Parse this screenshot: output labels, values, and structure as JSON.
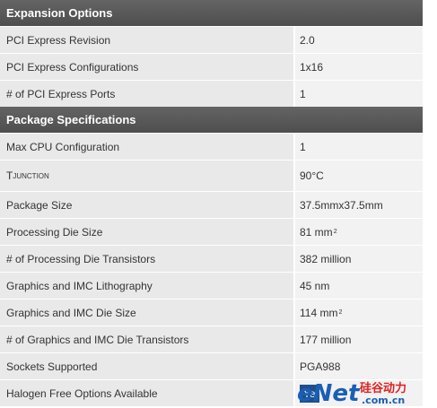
{
  "sections": [
    {
      "title": "Expansion Options",
      "rows": [
        {
          "label": "PCI Express Revision",
          "value": "2.0"
        },
        {
          "label": "PCI Express Configurations",
          "value": "1x16"
        },
        {
          "label": "# of PCI Express Ports",
          "value": "1"
        }
      ]
    },
    {
      "title": "Package Specifications",
      "rows": [
        {
          "label": "Max CPU Configuration",
          "value": "1"
        },
        {
          "label_main": "T",
          "label_sub": "JUNCTION",
          "value": "90°C"
        },
        {
          "label": "Package Size",
          "value": "37.5mmx37.5mm"
        },
        {
          "label": "Processing Die Size",
          "value_main": "81 mm",
          "value_sup": "2"
        },
        {
          "label": "# of Processing Die Transistors",
          "value": "382 million"
        },
        {
          "label": "Graphics and IMC Lithography",
          "value": "45 nm"
        },
        {
          "label": "Graphics and IMC Die Size",
          "value_main": "114 mm",
          "value_sup": "2"
        },
        {
          "label": "# of Graphics and IMC Die Transistors",
          "value": "177 million"
        },
        {
          "label": "Sockets Supported",
          "value": "PGA988"
        },
        {
          "label": "Halogen Free Options Available",
          "value": "Ye"
        }
      ]
    }
  ],
  "watermark": {
    "brand": "eNet",
    "chinese": "硅谷动力",
    "domain": ".com.cn",
    "colors": {
      "e": "#1a5fb4",
      "net": "#1a5fb4",
      "chinese": "#e02020"
    }
  }
}
